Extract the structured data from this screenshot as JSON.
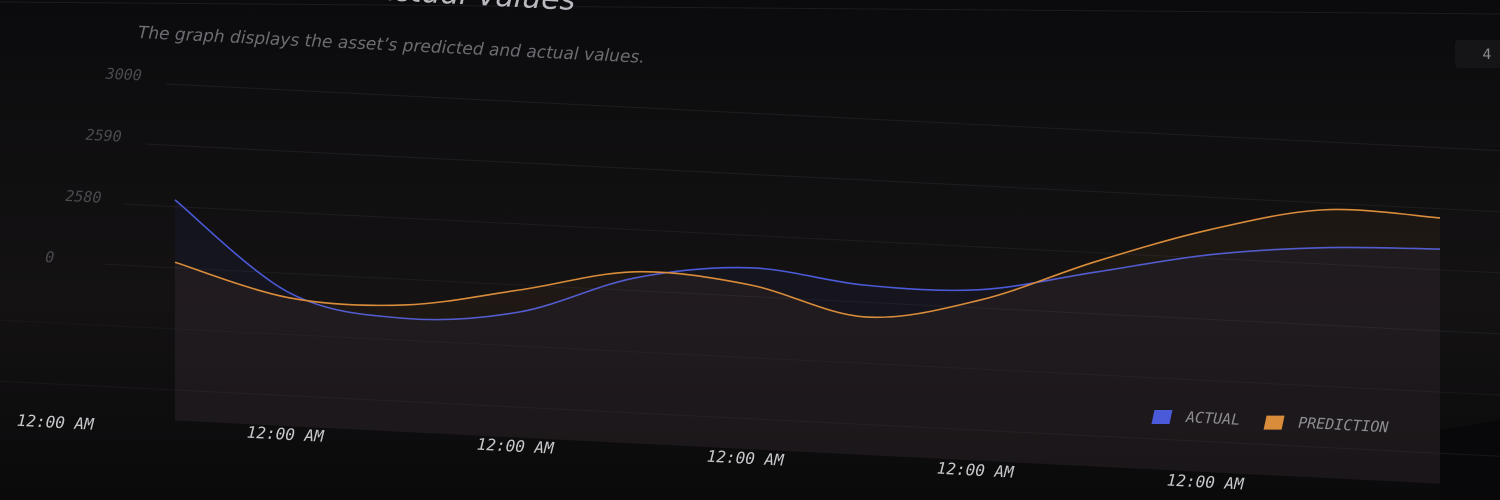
{
  "chart_data": {
    "type": "line",
    "title": "Predicted vs. Actual Values",
    "subtitle": "The graph displays the asset’s predicted and actual values.",
    "badge": "4",
    "categories": [
      "12:00 AM",
      null,
      "12:00 AM",
      null,
      "12:00 AM",
      null,
      "12:00 AM",
      null,
      "12:00 AM",
      null,
      "12:00 AM",
      null,
      null
    ],
    "series": [
      {
        "name": "ACTUAL",
        "color": "#4a5ad8",
        "values": [
          null,
          1.11,
          -0.32,
          -0.64,
          -0.44,
          0.21,
          0.47,
          0.28,
          0.3,
          0.68,
          1.06,
          1.27,
          1.34
        ]
      },
      {
        "name": "PREDICTION",
        "color": "#d98c3a",
        "values": [
          null,
          0.09,
          -0.4,
          -0.42,
          -0.08,
          0.31,
          0.19,
          -0.24,
          0.13,
          0.85,
          1.47,
          1.89,
          1.85
        ]
      }
    ],
    "ylim": [
      -3,
      3.3
    ],
    "yticks": [
      {
        "value": 3,
        "label": "3000"
      },
      {
        "value": 2,
        "label": "2590"
      },
      {
        "value": 1,
        "label": "2580"
      },
      0
    ],
    "grid": true,
    "legend": "bottom-right"
  }
}
